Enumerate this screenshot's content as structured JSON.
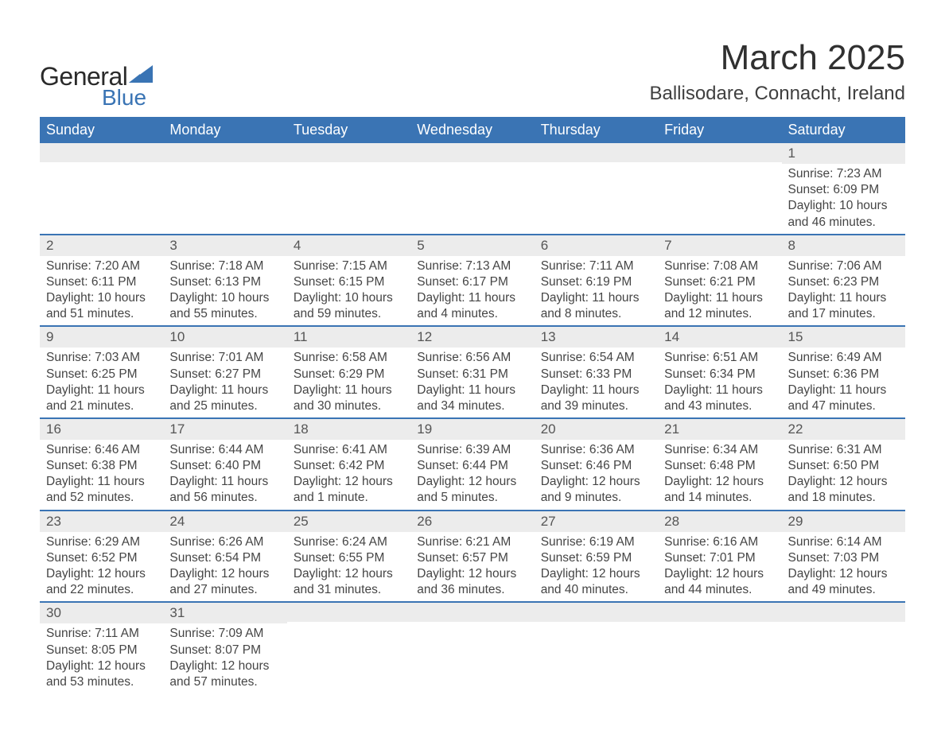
{
  "brand": {
    "general": "General",
    "blue": "Blue",
    "triangle_color": "#3a74b4"
  },
  "title": {
    "month": "March 2025",
    "location": "Ballisodare, Connacht, Ireland"
  },
  "colors": {
    "header_bg": "#3a74b4",
    "header_text": "#ffffff",
    "strip_bg": "#ececec",
    "row_border": "#3a74b4",
    "body_text": "#454545"
  },
  "typography": {
    "month_title_fontsize": 44,
    "location_fontsize": 24,
    "weekday_fontsize": 18,
    "daynum_fontsize": 17,
    "cell_fontsize": 15.5
  },
  "weekdays": [
    "Sunday",
    "Monday",
    "Tuesday",
    "Wednesday",
    "Thursday",
    "Friday",
    "Saturday"
  ],
  "weeks": [
    [
      {
        "n": "",
        "sr": "",
        "ss": "",
        "dl": ""
      },
      {
        "n": "",
        "sr": "",
        "ss": "",
        "dl": ""
      },
      {
        "n": "",
        "sr": "",
        "ss": "",
        "dl": ""
      },
      {
        "n": "",
        "sr": "",
        "ss": "",
        "dl": ""
      },
      {
        "n": "",
        "sr": "",
        "ss": "",
        "dl": ""
      },
      {
        "n": "",
        "sr": "",
        "ss": "",
        "dl": ""
      },
      {
        "n": "1",
        "sr": "Sunrise: 7:23 AM",
        "ss": "Sunset: 6:09 PM",
        "dl": "Daylight: 10 hours and 46 minutes."
      }
    ],
    [
      {
        "n": "2",
        "sr": "Sunrise: 7:20 AM",
        "ss": "Sunset: 6:11 PM",
        "dl": "Daylight: 10 hours and 51 minutes."
      },
      {
        "n": "3",
        "sr": "Sunrise: 7:18 AM",
        "ss": "Sunset: 6:13 PM",
        "dl": "Daylight: 10 hours and 55 minutes."
      },
      {
        "n": "4",
        "sr": "Sunrise: 7:15 AM",
        "ss": "Sunset: 6:15 PM",
        "dl": "Daylight: 10 hours and 59 minutes."
      },
      {
        "n": "5",
        "sr": "Sunrise: 7:13 AM",
        "ss": "Sunset: 6:17 PM",
        "dl": "Daylight: 11 hours and 4 minutes."
      },
      {
        "n": "6",
        "sr": "Sunrise: 7:11 AM",
        "ss": "Sunset: 6:19 PM",
        "dl": "Daylight: 11 hours and 8 minutes."
      },
      {
        "n": "7",
        "sr": "Sunrise: 7:08 AM",
        "ss": "Sunset: 6:21 PM",
        "dl": "Daylight: 11 hours and 12 minutes."
      },
      {
        "n": "8",
        "sr": "Sunrise: 7:06 AM",
        "ss": "Sunset: 6:23 PM",
        "dl": "Daylight: 11 hours and 17 minutes."
      }
    ],
    [
      {
        "n": "9",
        "sr": "Sunrise: 7:03 AM",
        "ss": "Sunset: 6:25 PM",
        "dl": "Daylight: 11 hours and 21 minutes."
      },
      {
        "n": "10",
        "sr": "Sunrise: 7:01 AM",
        "ss": "Sunset: 6:27 PM",
        "dl": "Daylight: 11 hours and 25 minutes."
      },
      {
        "n": "11",
        "sr": "Sunrise: 6:58 AM",
        "ss": "Sunset: 6:29 PM",
        "dl": "Daylight: 11 hours and 30 minutes."
      },
      {
        "n": "12",
        "sr": "Sunrise: 6:56 AM",
        "ss": "Sunset: 6:31 PM",
        "dl": "Daylight: 11 hours and 34 minutes."
      },
      {
        "n": "13",
        "sr": "Sunrise: 6:54 AM",
        "ss": "Sunset: 6:33 PM",
        "dl": "Daylight: 11 hours and 39 minutes."
      },
      {
        "n": "14",
        "sr": "Sunrise: 6:51 AM",
        "ss": "Sunset: 6:34 PM",
        "dl": "Daylight: 11 hours and 43 minutes."
      },
      {
        "n": "15",
        "sr": "Sunrise: 6:49 AM",
        "ss": "Sunset: 6:36 PM",
        "dl": "Daylight: 11 hours and 47 minutes."
      }
    ],
    [
      {
        "n": "16",
        "sr": "Sunrise: 6:46 AM",
        "ss": "Sunset: 6:38 PM",
        "dl": "Daylight: 11 hours and 52 minutes."
      },
      {
        "n": "17",
        "sr": "Sunrise: 6:44 AM",
        "ss": "Sunset: 6:40 PM",
        "dl": "Daylight: 11 hours and 56 minutes."
      },
      {
        "n": "18",
        "sr": "Sunrise: 6:41 AM",
        "ss": "Sunset: 6:42 PM",
        "dl": "Daylight: 12 hours and 1 minute."
      },
      {
        "n": "19",
        "sr": "Sunrise: 6:39 AM",
        "ss": "Sunset: 6:44 PM",
        "dl": "Daylight: 12 hours and 5 minutes."
      },
      {
        "n": "20",
        "sr": "Sunrise: 6:36 AM",
        "ss": "Sunset: 6:46 PM",
        "dl": "Daylight: 12 hours and 9 minutes."
      },
      {
        "n": "21",
        "sr": "Sunrise: 6:34 AM",
        "ss": "Sunset: 6:48 PM",
        "dl": "Daylight: 12 hours and 14 minutes."
      },
      {
        "n": "22",
        "sr": "Sunrise: 6:31 AM",
        "ss": "Sunset: 6:50 PM",
        "dl": "Daylight: 12 hours and 18 minutes."
      }
    ],
    [
      {
        "n": "23",
        "sr": "Sunrise: 6:29 AM",
        "ss": "Sunset: 6:52 PM",
        "dl": "Daylight: 12 hours and 22 minutes."
      },
      {
        "n": "24",
        "sr": "Sunrise: 6:26 AM",
        "ss": "Sunset: 6:54 PM",
        "dl": "Daylight: 12 hours and 27 minutes."
      },
      {
        "n": "25",
        "sr": "Sunrise: 6:24 AM",
        "ss": "Sunset: 6:55 PM",
        "dl": "Daylight: 12 hours and 31 minutes."
      },
      {
        "n": "26",
        "sr": "Sunrise: 6:21 AM",
        "ss": "Sunset: 6:57 PM",
        "dl": "Daylight: 12 hours and 36 minutes."
      },
      {
        "n": "27",
        "sr": "Sunrise: 6:19 AM",
        "ss": "Sunset: 6:59 PM",
        "dl": "Daylight: 12 hours and 40 minutes."
      },
      {
        "n": "28",
        "sr": "Sunrise: 6:16 AM",
        "ss": "Sunset: 7:01 PM",
        "dl": "Daylight: 12 hours and 44 minutes."
      },
      {
        "n": "29",
        "sr": "Sunrise: 6:14 AM",
        "ss": "Sunset: 7:03 PM",
        "dl": "Daylight: 12 hours and 49 minutes."
      }
    ],
    [
      {
        "n": "30",
        "sr": "Sunrise: 7:11 AM",
        "ss": "Sunset: 8:05 PM",
        "dl": "Daylight: 12 hours and 53 minutes."
      },
      {
        "n": "31",
        "sr": "Sunrise: 7:09 AM",
        "ss": "Sunset: 8:07 PM",
        "dl": "Daylight: 12 hours and 57 minutes."
      },
      {
        "n": "",
        "sr": "",
        "ss": "",
        "dl": ""
      },
      {
        "n": "",
        "sr": "",
        "ss": "",
        "dl": ""
      },
      {
        "n": "",
        "sr": "",
        "ss": "",
        "dl": ""
      },
      {
        "n": "",
        "sr": "",
        "ss": "",
        "dl": ""
      },
      {
        "n": "",
        "sr": "",
        "ss": "",
        "dl": ""
      }
    ]
  ]
}
